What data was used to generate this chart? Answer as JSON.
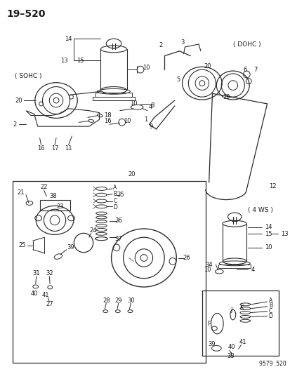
{
  "title": "19–520",
  "bg_color": "#ffffff",
  "line_color": "#2a2a2a",
  "text_color": "#1a1a1a",
  "watermark": "9579  520",
  "labels": {
    "sohc": "( SOHC )",
    "dohc": "( DOHC )",
    "ws4": "( 4 WS )"
  },
  "fig_w": 4.14,
  "fig_h": 5.33,
  "dpi": 100
}
